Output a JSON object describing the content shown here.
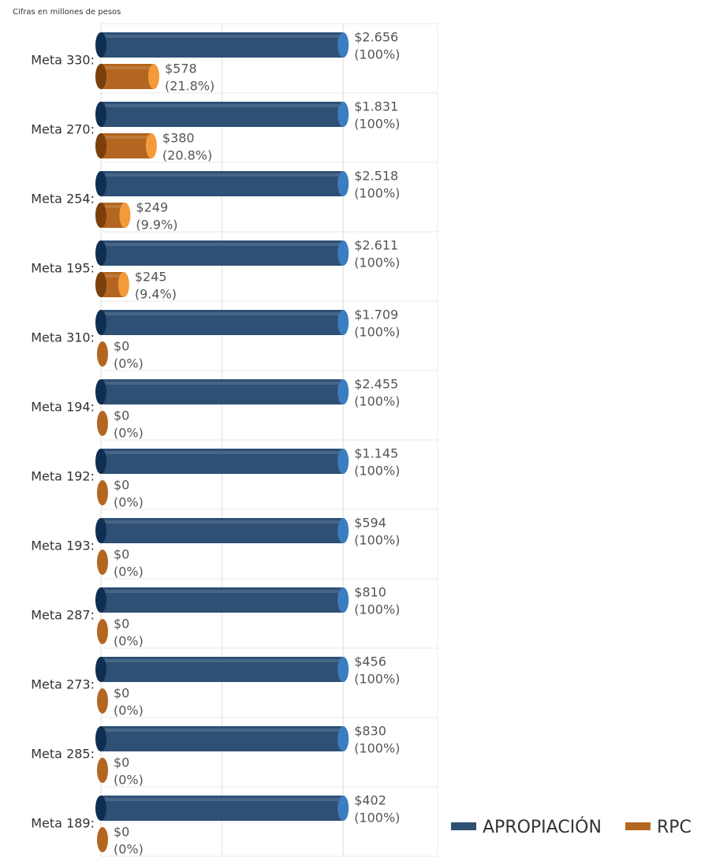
{
  "chart_data": {
    "type": "cylinder-bar",
    "subtitle": "Cifras en millones de pesos",
    "categories": [
      "Meta 330:",
      "Meta 270:",
      "Meta 254:",
      "Meta 195:",
      "Meta 310:",
      "Meta 194:",
      "Meta 192:",
      "Meta 193:",
      "Meta 287:",
      "Meta 273:",
      "Meta 285:",
      "Meta 189:"
    ],
    "series": [
      {
        "name": "APROPIACIÓN",
        "color": "#2e5075",
        "cap_color": "#3a7dc0",
        "base_color": "#0f2f52",
        "values": [
          100,
          100,
          100,
          100,
          100,
          100,
          100,
          100,
          100,
          100,
          100,
          100
        ],
        "value_labels": [
          "(100%)",
          "(100%)",
          "(100%)",
          "(100%)",
          "(100%)",
          "(100%)",
          "(100%)",
          "(100%)",
          "(100%)",
          "(100%)",
          "(100%)",
          "(100%)"
        ],
        "amount_labels": [
          "$2.656",
          "$1.831",
          "$2.518",
          "$2.611",
          "$1.709",
          "$2.455",
          "$1.145",
          "$594",
          "$810",
          "$456",
          "$830",
          "$402"
        ]
      },
      {
        "name": "RPC",
        "color": "#b3661f",
        "cap_color": "#f39b3b",
        "base_color": "#7a3f0c",
        "values": [
          21.8,
          20.8,
          9.9,
          9.4,
          0,
          0,
          0,
          0,
          0,
          0,
          0,
          0
        ],
        "value_labels": [
          "(21.8%)",
          "(20.8%)",
          "(9.9%)",
          "(9.4%)",
          "(0%)",
          "(0%)",
          "(0%)",
          "(0%)",
          "(0%)",
          "(0%)",
          "(0%)",
          "(0%)"
        ],
        "amount_labels": [
          "$578",
          "$380",
          "$249",
          "$245",
          "$0",
          "$0",
          "$0",
          "$0",
          "$0",
          "$0",
          "$0",
          "$0"
        ]
      }
    ],
    "xlim": [
      0,
      139
    ],
    "xticks": [
      0,
      50,
      100
    ],
    "grid": true
  }
}
